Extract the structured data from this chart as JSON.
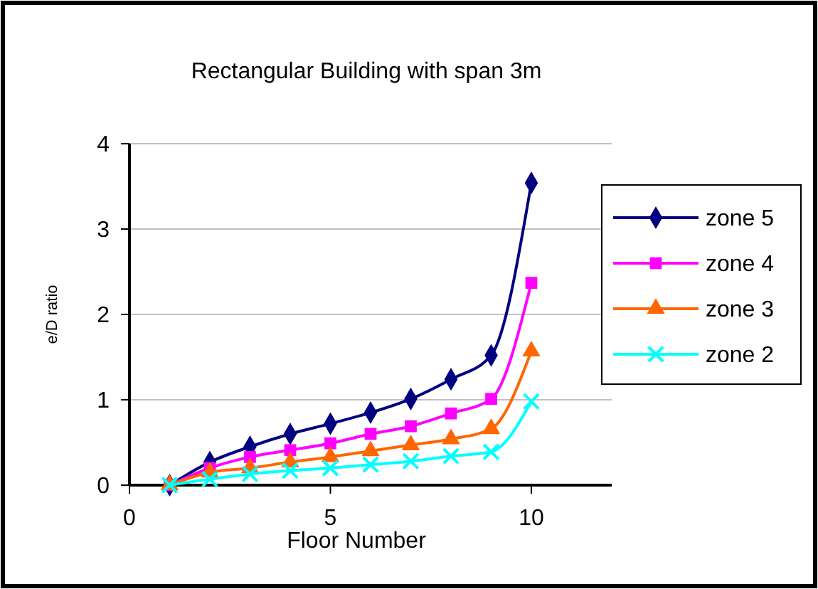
{
  "chart_data": {
    "type": "line",
    "title": "Rectangular Building with span 3m",
    "xlabel": "Floor Number",
    "ylabel": "e/D ratio",
    "x": [
      1,
      2,
      3,
      4,
      5,
      6,
      7,
      8,
      9,
      10
    ],
    "series": [
      {
        "name": "zone 5",
        "color": "#000080",
        "marker": "diamond",
        "values": [
          0,
          0.27,
          0.45,
          0.6,
          0.72,
          0.85,
          1.01,
          1.24,
          1.52,
          3.54
        ]
      },
      {
        "name": "zone 4",
        "color": "#ff00ff",
        "marker": "square",
        "values": [
          0,
          0.2,
          0.33,
          0.41,
          0.49,
          0.6,
          0.69,
          0.84,
          1.01,
          2.37
        ]
      },
      {
        "name": "zone 3",
        "color": "#ff6600",
        "marker": "triangle",
        "values": [
          0,
          0.15,
          0.2,
          0.27,
          0.33,
          0.4,
          0.47,
          0.54,
          0.66,
          1.57
        ]
      },
      {
        "name": "zone 2",
        "color": "#00ffff",
        "marker": "cross",
        "values": [
          0,
          0.07,
          0.13,
          0.17,
          0.2,
          0.24,
          0.28,
          0.34,
          0.39,
          0.98
        ]
      }
    ],
    "xlim": [
      0,
      12
    ],
    "xticks": [
      0,
      5,
      10
    ],
    "ylim": [
      0,
      4
    ],
    "yticks": [
      0,
      1,
      2,
      3,
      4
    ],
    "grid": "y",
    "legend": "right"
  }
}
